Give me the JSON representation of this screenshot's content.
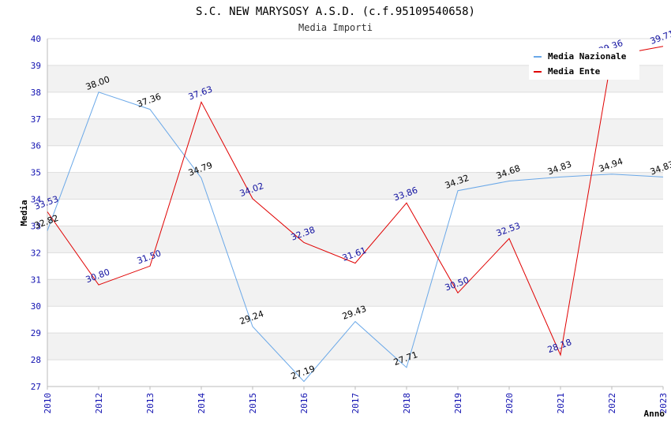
{
  "chart_data": {
    "type": "line",
    "title": "S.C. NEW MARYSOSY A.S.D. (c.f.95109540658)",
    "subtitle": "Media Importi",
    "xlabel": "Anno",
    "ylabel": "Media",
    "categories": [
      "2010",
      "2012",
      "2013",
      "2014",
      "2015",
      "2016",
      "2017",
      "2018",
      "2019",
      "2020",
      "2021",
      "2022",
      "2023"
    ],
    "ylim": [
      27,
      40
    ],
    "yticks": [
      "27",
      "28",
      "29",
      "30",
      "31",
      "32",
      "33",
      "34",
      "35",
      "36",
      "37",
      "38",
      "39",
      "40"
    ],
    "grid": true,
    "legend_position": "top-right",
    "series": [
      {
        "name": "Media Nazionale",
        "color": "#6aa8e8",
        "label_color": "#000000",
        "values": [
          32.82,
          38.0,
          37.36,
          34.79,
          29.24,
          27.19,
          29.43,
          27.71,
          34.32,
          34.68,
          34.83,
          34.94,
          34.83
        ],
        "labels": [
          "32.82",
          "38.00",
          "37.36",
          "34.79",
          "29.24",
          "27.19",
          "29.43",
          "27.71",
          "34.32",
          "34.68",
          "34.83",
          "34.94",
          "34.83"
        ]
      },
      {
        "name": "Media Ente",
        "color": "#e00000",
        "label_color": "#1010a0",
        "values": [
          33.53,
          30.8,
          31.5,
          37.63,
          34.02,
          32.38,
          31.61,
          33.86,
          30.5,
          32.53,
          28.18,
          39.36,
          39.71
        ],
        "labels": [
          "33.53",
          "30.80",
          "31.50",
          "37.63",
          "34.02",
          "32.38",
          "31.61",
          "33.86",
          "30.50",
          "32.53",
          "28.18",
          "39.36",
          "39.71"
        ]
      }
    ]
  }
}
